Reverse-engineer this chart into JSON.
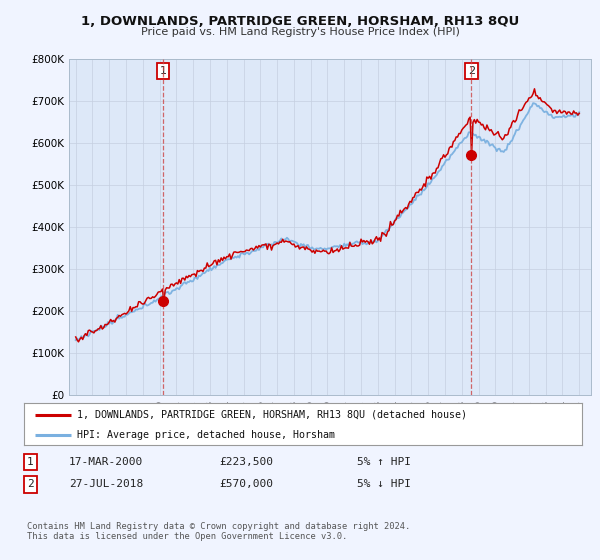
{
  "title": "1, DOWNLANDS, PARTRIDGE GREEN, HORSHAM, RH13 8QU",
  "subtitle": "Price paid vs. HM Land Registry's House Price Index (HPI)",
  "legend_line1": "1, DOWNLANDS, PARTRIDGE GREEN, HORSHAM, RH13 8QU (detached house)",
  "legend_line2": "HPI: Average price, detached house, Horsham",
  "transaction1_date": "17-MAR-2000",
  "transaction1_price": "£223,500",
  "transaction1_hpi": "5% ↑ HPI",
  "transaction2_date": "27-JUL-2018",
  "transaction2_price": "£570,000",
  "transaction2_hpi": "5% ↓ HPI",
  "footer": "Contains HM Land Registry data © Crown copyright and database right 2024.\nThis data is licensed under the Open Government Licence v3.0.",
  "ylim": [
    0,
    800000
  ],
  "yticks": [
    0,
    100000,
    200000,
    300000,
    400000,
    500000,
    600000,
    700000,
    800000
  ],
  "ytick_labels": [
    "£0",
    "£100K",
    "£200K",
    "£300K",
    "£400K",
    "£500K",
    "£600K",
    "£700K",
    "£800K"
  ],
  "hpi_color": "#7ab0e0",
  "price_color": "#cc0000",
  "background_color": "#f0f4ff",
  "plot_bg_color": "#dde8f8",
  "transaction1_x": 2000.21,
  "transaction2_x": 2018.57
}
